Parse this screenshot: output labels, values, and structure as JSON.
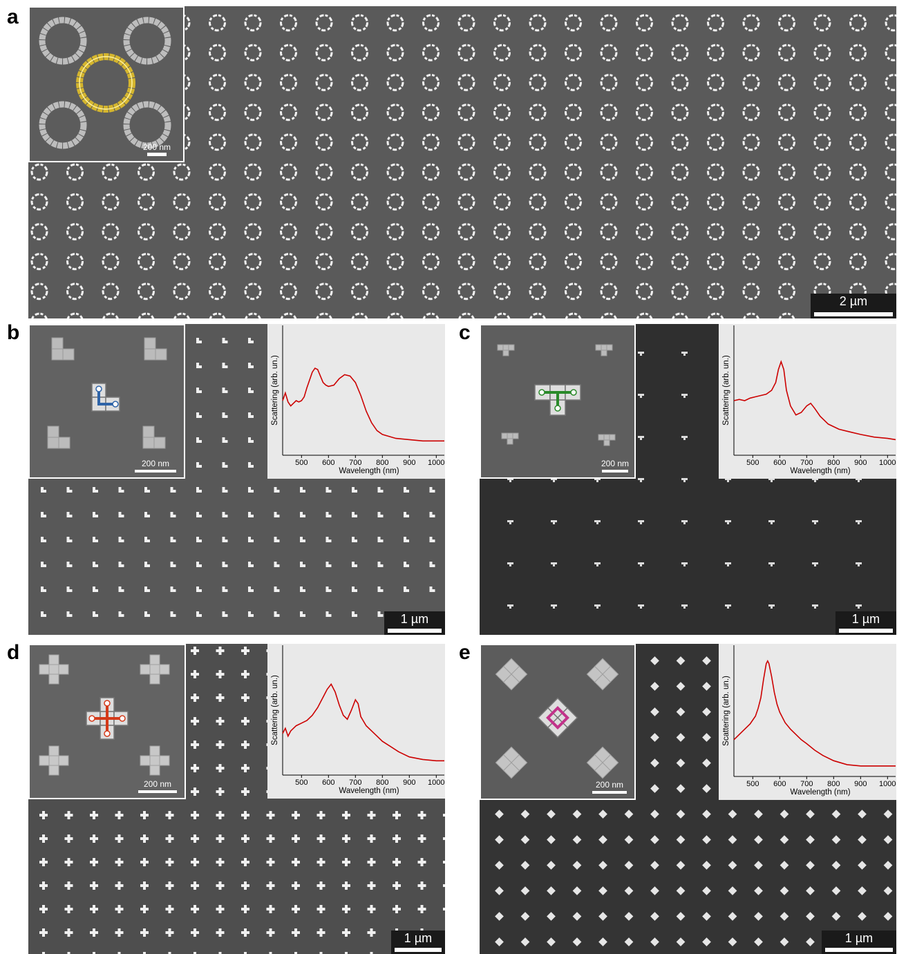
{
  "panels": {
    "a": {
      "label": "a",
      "inset_scale": "200 nm",
      "scale": "2 µm"
    },
    "b": {
      "label": "b",
      "inset_scale": "200 nm",
      "scale": "1 µm",
      "accent": "#2f64a8"
    },
    "c": {
      "label": "c",
      "inset_scale": "200 nm",
      "scale": "1 µm",
      "accent": "#2a8a2a"
    },
    "d": {
      "label": "d",
      "inset_scale": "200 nm",
      "scale": "1 µm",
      "accent": "#d43a1a"
    },
    "e": {
      "label": "e",
      "inset_scale": "200 nm",
      "scale": "1 µm",
      "accent": "#c2338a"
    }
  },
  "chart_data": [
    {
      "panel": "b",
      "type": "line",
      "xlabel": "Wavelength (nm)",
      "ylabel": "Scattering (arb. un.)",
      "xticks": [
        500,
        600,
        700,
        800,
        900,
        1000
      ],
      "xlim": [
        430,
        1030
      ],
      "ylim": [
        0,
        1
      ],
      "color": "#cc0000",
      "x": [
        430,
        440,
        450,
        460,
        470,
        480,
        490,
        500,
        510,
        520,
        530,
        540,
        550,
        560,
        570,
        580,
        590,
        600,
        620,
        640,
        660,
        680,
        700,
        720,
        740,
        760,
        780,
        800,
        850,
        900,
        950,
        1000,
        1030
      ],
      "y": [
        0.42,
        0.48,
        0.41,
        0.38,
        0.4,
        0.42,
        0.41,
        0.42,
        0.45,
        0.52,
        0.58,
        0.64,
        0.67,
        0.66,
        0.61,
        0.56,
        0.54,
        0.53,
        0.54,
        0.59,
        0.62,
        0.61,
        0.56,
        0.46,
        0.34,
        0.25,
        0.19,
        0.16,
        0.13,
        0.12,
        0.11,
        0.11,
        0.11
      ]
    },
    {
      "panel": "c",
      "type": "line",
      "xlabel": "Wavelength (nm)",
      "ylabel": "Scattering (arb. un.)",
      "xticks": [
        500,
        600,
        700,
        800,
        900,
        1000
      ],
      "xlim": [
        430,
        1030
      ],
      "ylim": [
        0,
        1
      ],
      "color": "#cc0000",
      "x": [
        430,
        450,
        470,
        490,
        510,
        530,
        550,
        570,
        585,
        595,
        605,
        615,
        625,
        640,
        660,
        680,
        700,
        715,
        730,
        750,
        780,
        820,
        860,
        900,
        950,
        1000,
        1030
      ],
      "y": [
        0.42,
        0.43,
        0.42,
        0.44,
        0.45,
        0.46,
        0.47,
        0.5,
        0.56,
        0.66,
        0.72,
        0.66,
        0.5,
        0.38,
        0.31,
        0.33,
        0.38,
        0.4,
        0.36,
        0.3,
        0.24,
        0.2,
        0.18,
        0.16,
        0.14,
        0.13,
        0.12
      ]
    },
    {
      "panel": "d",
      "type": "line",
      "xlabel": "Wavelength (nm)",
      "ylabel": "Scattering (arb. un.)",
      "xticks": [
        500,
        600,
        700,
        800,
        900,
        1000
      ],
      "xlim": [
        430,
        1030
      ],
      "ylim": [
        0,
        1
      ],
      "color": "#cc0000",
      "x": [
        430,
        440,
        450,
        460,
        470,
        480,
        500,
        520,
        540,
        560,
        580,
        595,
        610,
        625,
        640,
        655,
        670,
        685,
        700,
        710,
        720,
        740,
        760,
        780,
        800,
        830,
        860,
        900,
        950,
        1000,
        1030
      ],
      "y": [
        0.32,
        0.36,
        0.3,
        0.34,
        0.36,
        0.38,
        0.4,
        0.42,
        0.46,
        0.52,
        0.6,
        0.66,
        0.7,
        0.64,
        0.54,
        0.46,
        0.43,
        0.5,
        0.58,
        0.55,
        0.45,
        0.38,
        0.34,
        0.3,
        0.26,
        0.22,
        0.18,
        0.14,
        0.12,
        0.11,
        0.11
      ]
    },
    {
      "panel": "e",
      "type": "line",
      "xlabel": "Wavelength (nm)",
      "ylabel": "Scattering (arb. un.)",
      "xticks": [
        500,
        600,
        700,
        800,
        900,
        1000
      ],
      "xlim": [
        430,
        1030
      ],
      "ylim": [
        0,
        1
      ],
      "color": "#cc0000",
      "x": [
        430,
        450,
        470,
        490,
        510,
        520,
        530,
        540,
        550,
        555,
        560,
        570,
        580,
        590,
        600,
        620,
        640,
        660,
        680,
        700,
        730,
        760,
        800,
        850,
        900,
        950,
        1000,
        1030
      ],
      "y": [
        0.28,
        0.32,
        0.36,
        0.4,
        0.46,
        0.52,
        0.6,
        0.74,
        0.86,
        0.88,
        0.86,
        0.76,
        0.64,
        0.55,
        0.49,
        0.41,
        0.36,
        0.32,
        0.28,
        0.25,
        0.2,
        0.16,
        0.12,
        0.09,
        0.08,
        0.08,
        0.08,
        0.08
      ]
    }
  ]
}
